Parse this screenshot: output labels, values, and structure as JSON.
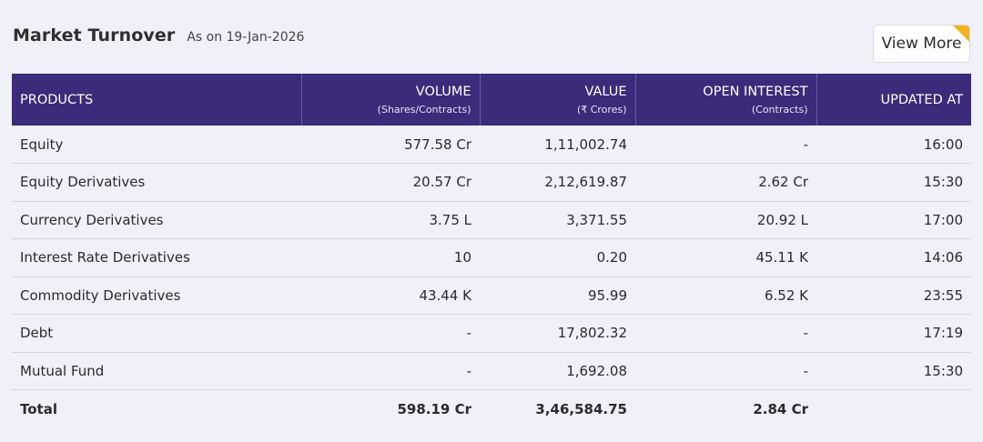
{
  "header": {
    "title": "Market Turnover",
    "as_of": "As on 19-Jan-2026",
    "view_more_label": "View More"
  },
  "table": {
    "columns": [
      {
        "label": "PRODUCTS",
        "sub": ""
      },
      {
        "label": "VOLUME",
        "sub": "(Shares/Contracts)"
      },
      {
        "label": "VALUE",
        "sub": "(₹ Crores)"
      },
      {
        "label": "OPEN INTEREST",
        "sub": "(Contracts)"
      },
      {
        "label": "UPDATED AT",
        "sub": ""
      }
    ],
    "rows": [
      {
        "product": "Equity",
        "volume": "577.58 Cr",
        "value": "1,11,002.74",
        "open_interest": "-",
        "updated_at": "16:00"
      },
      {
        "product": "Equity Derivatives",
        "volume": "20.57 Cr",
        "value": "2,12,619.87",
        "open_interest": "2.62 Cr",
        "updated_at": "15:30"
      },
      {
        "product": "Currency Derivatives",
        "volume": "3.75 L",
        "value": "3,371.55",
        "open_interest": "20.92 L",
        "updated_at": "17:00"
      },
      {
        "product": "Interest Rate Derivatives",
        "volume": "10",
        "value": "0.20",
        "open_interest": "45.11 K",
        "updated_at": "14:06"
      },
      {
        "product": "Commodity Derivatives",
        "volume": "43.44 K",
        "value": "95.99",
        "open_interest": "6.52 K",
        "updated_at": "23:55"
      },
      {
        "product": "Debt",
        "volume": "-",
        "value": "17,802.32",
        "open_interest": "-",
        "updated_at": "17:19"
      },
      {
        "product": "Mutual Fund",
        "volume": "-",
        "value": "1,692.08",
        "open_interest": "-",
        "updated_at": "15:30"
      }
    ],
    "total": {
      "product": "Total",
      "volume": "598.19 Cr",
      "value": "3,46,584.75",
      "open_interest": "2.84 Cr",
      "updated_at": ""
    }
  },
  "colors": {
    "header_bg": "#3c2a7a",
    "page_bg": "#eff0f8",
    "accent_corner": "#f2b31e"
  }
}
